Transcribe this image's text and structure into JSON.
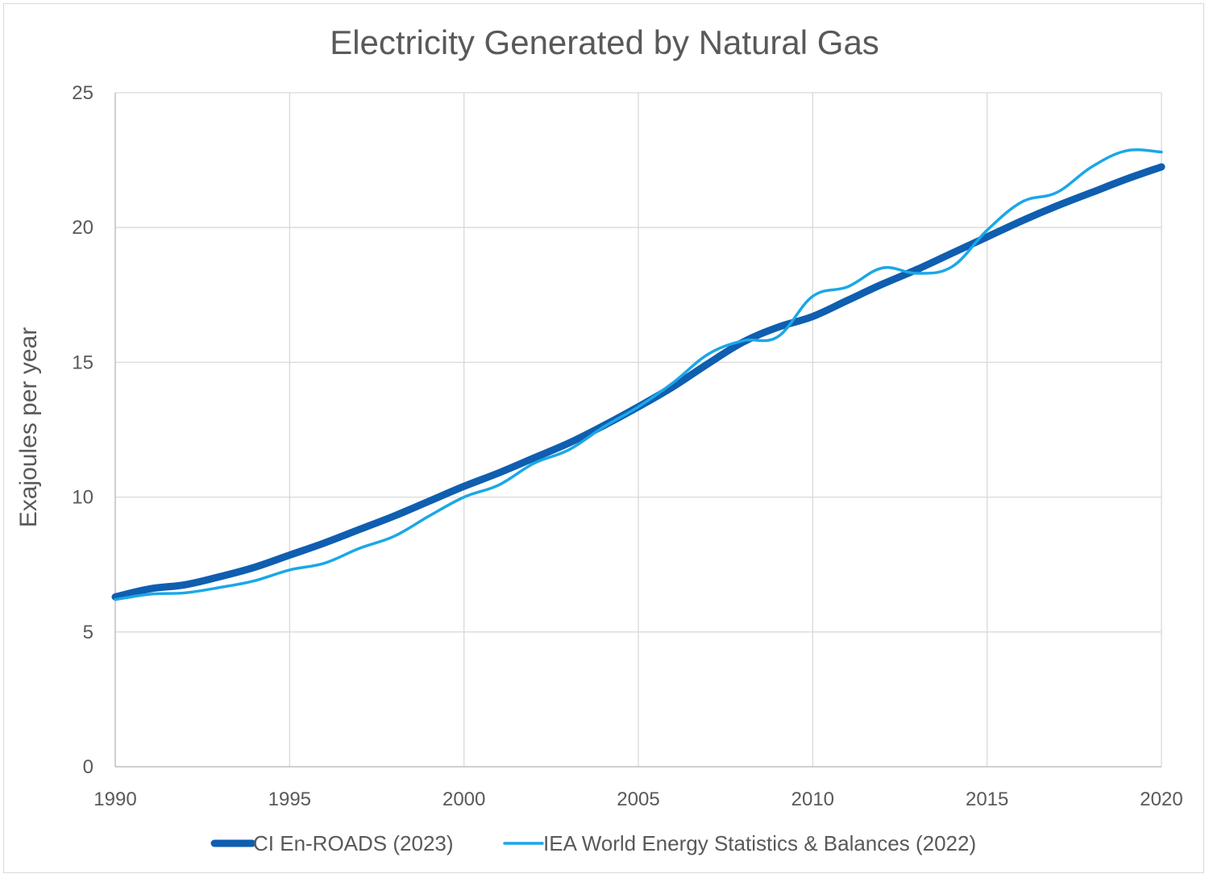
{
  "chart_data": {
    "type": "line",
    "title": "Electricity Generated by Natural Gas",
    "xlabel": "",
    "ylabel": "Exajoules per year",
    "xlim": [
      1990,
      2020
    ],
    "ylim": [
      0,
      25
    ],
    "x_ticks": [
      "1990",
      "1995",
      "2000",
      "2005",
      "2010",
      "2015",
      "2020"
    ],
    "y_ticks": [
      "0",
      "5",
      "10",
      "15",
      "20",
      "25"
    ],
    "grid": true,
    "legend_position": "bottom",
    "x": [
      1990,
      1991,
      1992,
      1993,
      1994,
      1995,
      1996,
      1997,
      1998,
      1999,
      2000,
      2001,
      2002,
      2003,
      2004,
      2005,
      2006,
      2007,
      2008,
      2009,
      2010,
      2011,
      2012,
      2013,
      2014,
      2015,
      2016,
      2017,
      2018,
      2019,
      2020
    ],
    "series": [
      {
        "name": "CI En-ROADS (2023)",
        "color": "#0f5eb0",
        "style": "thick",
        "values": [
          6.3,
          6.6,
          6.75,
          7.05,
          7.4,
          7.85,
          8.3,
          8.8,
          9.3,
          9.85,
          10.4,
          10.9,
          11.45,
          12.0,
          12.65,
          13.35,
          14.1,
          14.95,
          15.75,
          16.3,
          16.7,
          17.3,
          17.9,
          18.45,
          19.05,
          19.65,
          20.25,
          20.8,
          21.3,
          21.8,
          22.25
        ]
      },
      {
        "name": "IEA World Energy Statistics & Balances (2022)",
        "color": "#1aa7e8",
        "style": "thin",
        "values": [
          6.2,
          6.4,
          6.45,
          6.65,
          6.9,
          7.3,
          7.55,
          8.1,
          8.55,
          9.3,
          10.0,
          10.45,
          11.25,
          11.75,
          12.6,
          13.35,
          14.25,
          15.3,
          15.8,
          15.95,
          17.45,
          17.8,
          18.5,
          18.3,
          18.55,
          19.9,
          20.95,
          21.3,
          22.25,
          22.85,
          22.8
        ]
      }
    ]
  }
}
